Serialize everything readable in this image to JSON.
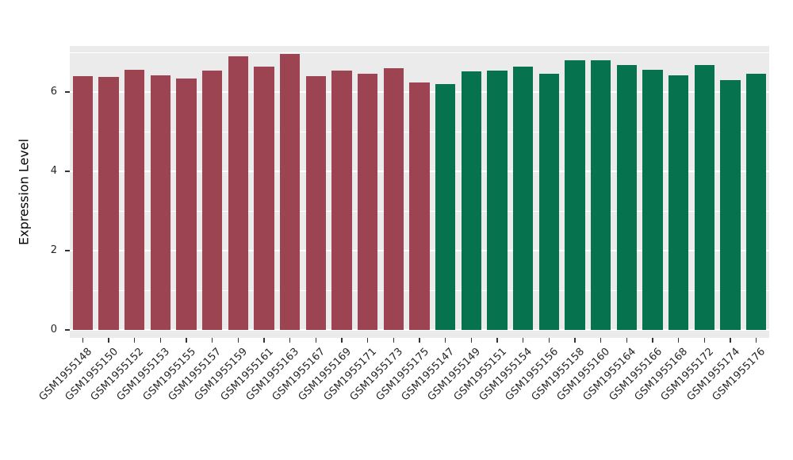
{
  "chart_data": {
    "type": "bar",
    "title": "",
    "xlabel": "",
    "ylabel": "Expression Level",
    "ylim": [
      0,
      7.16
    ],
    "yticks": [
      {
        "label": "0",
        "value": 0
      },
      {
        "label": "2",
        "value": 2
      },
      {
        "label": "4",
        "value": 4
      },
      {
        "label": "6",
        "value": 6
      }
    ],
    "minor_tick_values": [
      1,
      3,
      5,
      7
    ],
    "grid": true,
    "legend": "none",
    "panel_bg": "#EBEBEB",
    "grid_color": "#FFFFFF",
    "group_colors": {
      "left_group": "#9D4452",
      "right_group": "#06724E"
    },
    "bars": [
      {
        "label": "GSM1955148",
        "value": 6.4,
        "color": "#9D4452"
      },
      {
        "label": "GSM1955150",
        "value": 6.38,
        "color": "#9D4452"
      },
      {
        "label": "GSM1955152",
        "value": 6.56,
        "color": "#9D4452"
      },
      {
        "label": "GSM1955153",
        "value": 6.42,
        "color": "#9D4452"
      },
      {
        "label": "GSM1955155",
        "value": 6.35,
        "color": "#9D4452"
      },
      {
        "label": "GSM1955157",
        "value": 6.55,
        "color": "#9D4452"
      },
      {
        "label": "GSM1955159",
        "value": 6.9,
        "color": "#9D4452"
      },
      {
        "label": "GSM1955161",
        "value": 6.65,
        "color": "#9D4452"
      },
      {
        "label": "GSM1955163",
        "value": 6.96,
        "color": "#9D4452"
      },
      {
        "label": "GSM1955167",
        "value": 6.41,
        "color": "#9D4452"
      },
      {
        "label": "GSM1955169",
        "value": 6.55,
        "color": "#9D4452"
      },
      {
        "label": "GSM1955171",
        "value": 6.46,
        "color": "#9D4452"
      },
      {
        "label": "GSM1955173",
        "value": 6.61,
        "color": "#9D4452"
      },
      {
        "label": "GSM1955175",
        "value": 6.24,
        "color": "#9D4452"
      },
      {
        "label": "GSM1955147",
        "value": 6.2,
        "color": "#06724E"
      },
      {
        "label": "GSM1955149",
        "value": 6.52,
        "color": "#06724E"
      },
      {
        "label": "GSM1955151",
        "value": 6.54,
        "color": "#06724E"
      },
      {
        "label": "GSM1955154",
        "value": 6.65,
        "color": "#06724E"
      },
      {
        "label": "GSM1955156",
        "value": 6.47,
        "color": "#06724E"
      },
      {
        "label": "GSM1955158",
        "value": 6.8,
        "color": "#06724E"
      },
      {
        "label": "GSM1955160",
        "value": 6.81,
        "color": "#06724E"
      },
      {
        "label": "GSM1955164",
        "value": 6.68,
        "color": "#06724E"
      },
      {
        "label": "GSM1955166",
        "value": 6.56,
        "color": "#06724E"
      },
      {
        "label": "GSM1955168",
        "value": 6.43,
        "color": "#06724E"
      },
      {
        "label": "GSM1955172",
        "value": 6.68,
        "color": "#06724E"
      },
      {
        "label": "GSM1955174",
        "value": 6.3,
        "color": "#06724E"
      },
      {
        "label": "GSM1955176",
        "value": 6.46,
        "color": "#06724E"
      }
    ]
  }
}
